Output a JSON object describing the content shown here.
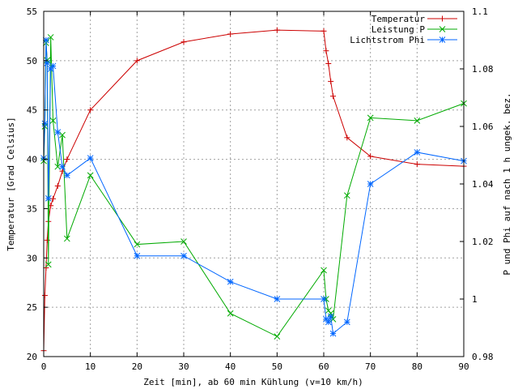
{
  "chart_data": {
    "type": "line",
    "xlabel": "Zeit [min], ab 60 min Kühlung (v=10 km/h)",
    "ylabel": "Temperatur [Grad Celsius]",
    "y2label": "P und Phi auf nach 1 h ungek. bez.",
    "xlim": [
      0,
      90
    ],
    "ylim": [
      20,
      55
    ],
    "y2lim": [
      0.98,
      1.1
    ],
    "xticks": [
      0,
      10,
      20,
      30,
      40,
      50,
      60,
      70,
      80,
      90
    ],
    "yticks": [
      20,
      25,
      30,
      35,
      40,
      45,
      50,
      55
    ],
    "y2ticks": [
      0.98,
      1,
      1.02,
      1.04,
      1.06,
      1.08,
      1.1
    ],
    "grid": true,
    "legend_position": "top-right",
    "series": [
      {
        "name": "Temperatur",
        "axis": "y1",
        "color": "#cc0000",
        "marker": "plus",
        "x": [
          0,
          0.25,
          0.5,
          0.75,
          1,
          1.5,
          2,
          3,
          4,
          5,
          10,
          20,
          30,
          40,
          50,
          60,
          60.5,
          61,
          61.5,
          62,
          65,
          70,
          80,
          90
        ],
        "y": [
          20.6,
          26.2,
          29.0,
          31.8,
          33.7,
          35.3,
          36.0,
          37.3,
          38.8,
          40.0,
          45.0,
          50.0,
          51.9,
          52.7,
          53.1,
          53.0,
          51.0,
          49.7,
          47.9,
          46.4,
          42.2,
          40.3,
          39.5,
          39.3
        ]
      },
      {
        "name": "Leistung P",
        "axis": "y2",
        "color": "#00aa00",
        "marker": "cross",
        "x": [
          0,
          0.25,
          0.5,
          0.75,
          1,
          1.5,
          2,
          3,
          4,
          5,
          10,
          20,
          30,
          40,
          50,
          60,
          60.5,
          61,
          61.5,
          62,
          65,
          70,
          80,
          90
        ],
        "y": [
          1.048,
          1.06,
          1.089,
          1.083,
          1.012,
          1.091,
          1.062,
          1.046,
          1.057,
          1.021,
          1.043,
          1.019,
          1.02,
          0.995,
          0.987,
          1.01,
          1.0,
          0.996,
          0.995,
          0.993,
          1.036,
          1.063,
          1.062,
          1.068
        ]
      },
      {
        "name": "Lichtstrom Phi",
        "axis": "y2",
        "color": "#0066ff",
        "marker": "star",
        "x": [
          0,
          0.25,
          0.5,
          0.75,
          1,
          1.5,
          2,
          3,
          4,
          5,
          10,
          20,
          30,
          40,
          50,
          60,
          60.5,
          61,
          61.5,
          62,
          65,
          70,
          80,
          90
        ],
        "y": [
          1.049,
          1.061,
          1.09,
          1.082,
          1.035,
          1.08,
          1.081,
          1.058,
          1.046,
          1.043,
          1.049,
          1.015,
          1.015,
          1.006,
          1.0,
          1.0,
          0.993,
          0.992,
          0.994,
          0.988,
          0.992,
          1.04,
          1.051,
          1.048
        ]
      }
    ]
  }
}
